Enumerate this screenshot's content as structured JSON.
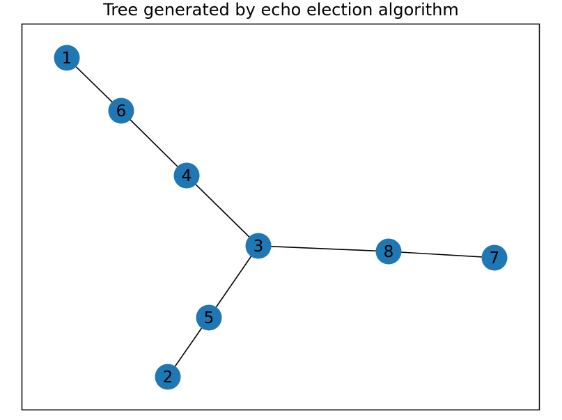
{
  "title": "Tree generated by echo election algorithm",
  "colors": {
    "node_fill": "#1f77b4",
    "edge": "#000000",
    "label": "#000000",
    "frame": "#000000"
  },
  "graph": {
    "nodes": [
      {
        "id": "1",
        "label": "1"
      },
      {
        "id": "6",
        "label": "6"
      },
      {
        "id": "4",
        "label": "4"
      },
      {
        "id": "3",
        "label": "3"
      },
      {
        "id": "8",
        "label": "8"
      },
      {
        "id": "7",
        "label": "7"
      },
      {
        "id": "5",
        "label": "5"
      },
      {
        "id": "2",
        "label": "2"
      }
    ],
    "edges": [
      [
        "1",
        "6"
      ],
      [
        "6",
        "4"
      ],
      [
        "4",
        "3"
      ],
      [
        "3",
        "8"
      ],
      [
        "8",
        "7"
      ],
      [
        "3",
        "5"
      ],
      [
        "5",
        "2"
      ]
    ]
  }
}
